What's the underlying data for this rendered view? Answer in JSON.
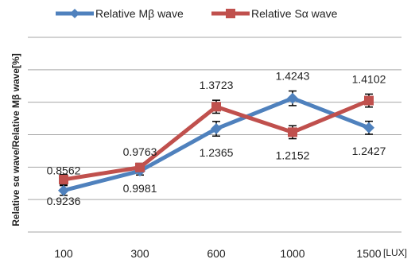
{
  "chart_data": {
    "type": "line",
    "title": "",
    "xlabel": "[LUX]",
    "ylabel": "Relative sα wave/Relative Mβ wave[%]",
    "categories": [
      "100",
      "300",
      "600",
      "1000",
      "1500"
    ],
    "ylim": [
      0.6,
      1.8
    ],
    "grid": true,
    "legend": "top-center",
    "series": [
      {
        "name": "Relative Mβ wave",
        "color": "#4f81bd",
        "marker": "diamond",
        "values": [
          0.8562,
          0.9763,
          1.2365,
          1.4243,
          1.2427
        ],
        "errors": [
          0.03,
          0.025,
          0.045,
          0.045,
          0.04
        ],
        "labels": [
          "0.8562",
          "0.9763",
          "1.2365",
          "1.4243",
          "1.2427"
        ]
      },
      {
        "name": "Relative Sα wave",
        "color": "#c0504d",
        "marker": "square",
        "values": [
          0.9236,
          0.9981,
          1.3723,
          1.2152,
          1.4102
        ],
        "errors": [
          0.03,
          0.025,
          0.04,
          0.04,
          0.04
        ],
        "labels": [
          "0.9236",
          "0.9981",
          "1.3723",
          "1.2152",
          "1.4102"
        ]
      }
    ]
  }
}
